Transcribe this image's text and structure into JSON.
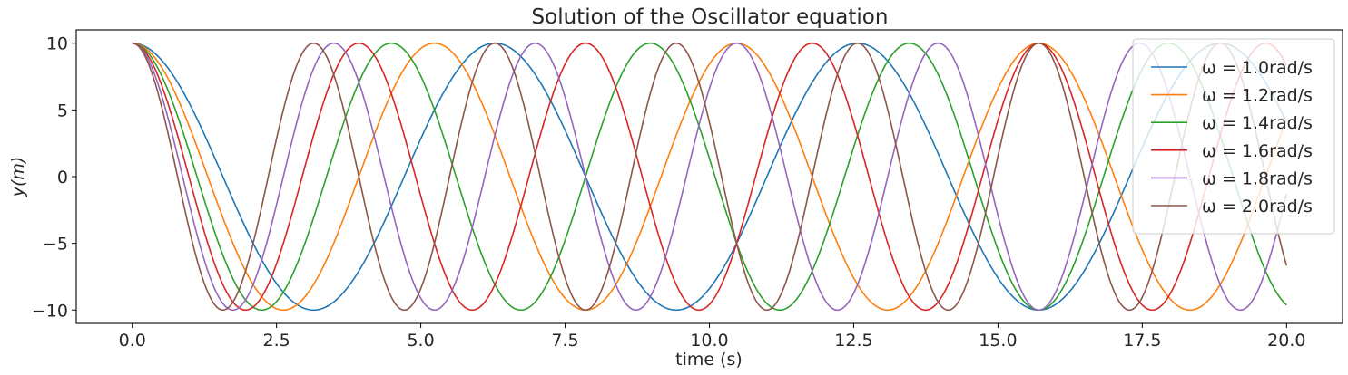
{
  "chart_data": {
    "type": "line",
    "title": "Solution of the Oscillator equation",
    "xlabel": "time (s)",
    "ylabel": "y(m)",
    "xlim": [
      -0.97,
      20.97
    ],
    "ylim": [
      -11.0,
      11.0
    ],
    "xticks": [
      0.0,
      2.5,
      5.0,
      7.5,
      10.0,
      12.5,
      15.0,
      17.5,
      20.0
    ],
    "xtick_labels": [
      "0.0",
      "2.5",
      "5.0",
      "7.5",
      "10.0",
      "12.5",
      "15.0",
      "17.5",
      "20.0"
    ],
    "yticks": [
      -10,
      -5,
      0,
      5,
      10
    ],
    "ytick_labels": [
      "−10",
      "−5",
      "0",
      "5",
      "10"
    ],
    "grid": false,
    "legend_position": "top-right",
    "equation": "y = 10·cos(ω·t)",
    "amplitude": 10,
    "t_range": [
      0,
      20
    ],
    "series": [
      {
        "name": "ω = 1.0rad/s",
        "omega": 1.0,
        "color": "#1f77b4"
      },
      {
        "name": "ω = 1.2rad/s",
        "omega": 1.2,
        "color": "#ff7f0e"
      },
      {
        "name": "ω = 1.4rad/s",
        "omega": 1.4,
        "color": "#2ca02c"
      },
      {
        "name": "ω = 1.6rad/s",
        "omega": 1.6,
        "color": "#d62728"
      },
      {
        "name": "ω = 1.8rad/s",
        "omega": 1.8,
        "color": "#9467bd"
      },
      {
        "name": "ω = 2.0rad/s",
        "omega": 2.0,
        "color": "#8c564b"
      }
    ]
  }
}
